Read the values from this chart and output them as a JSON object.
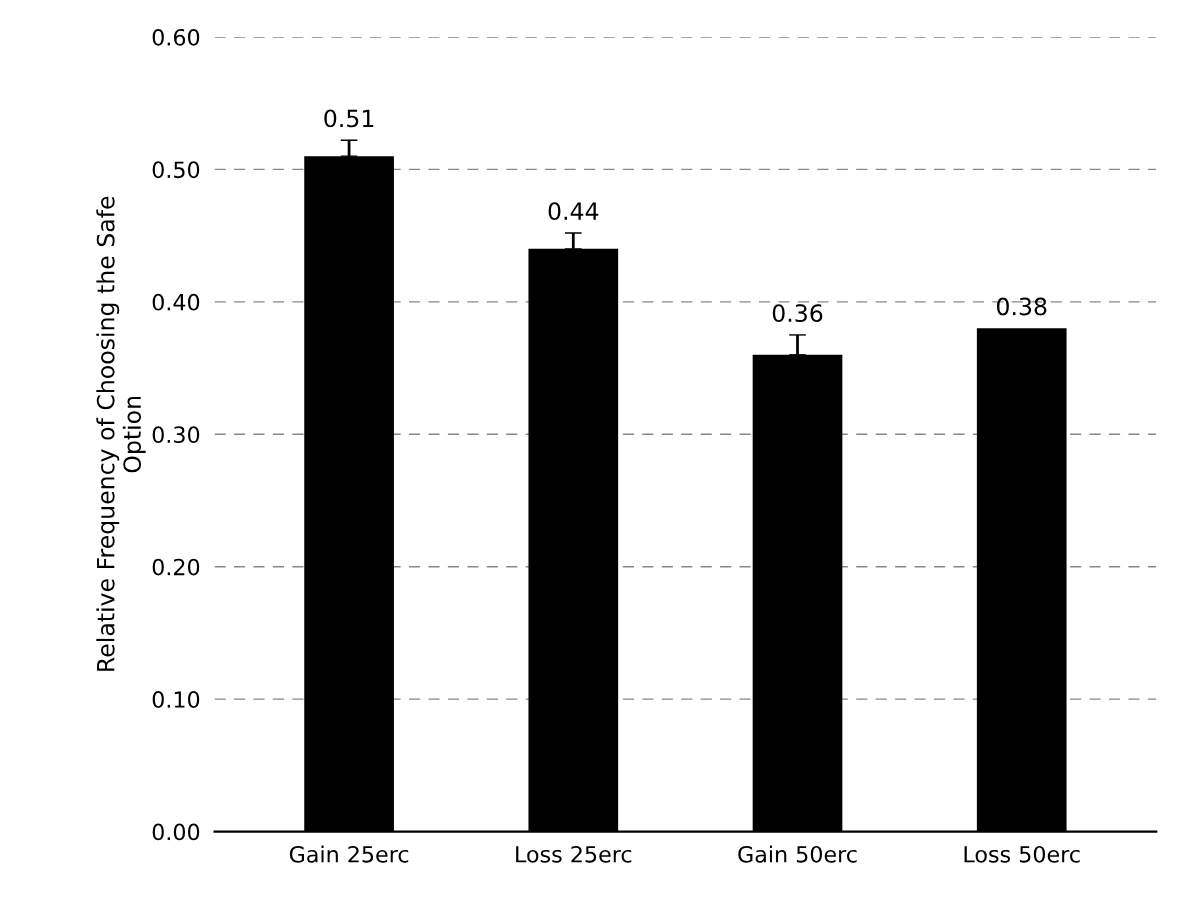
{
  "chart_data": {
    "type": "bar",
    "ylabel": "Relative Frequency of Choosing the Safe\nOption",
    "categories": [
      "Gain 25erc",
      "Loss 25erc",
      "Gain 50erc",
      "Loss 50erc"
    ],
    "values": [
      0.51,
      0.44,
      0.36,
      0.38
    ],
    "errors": [
      0.012,
      0.012,
      0.015,
      null
    ],
    "color": "#000000",
    "data_labels": true,
    "ylim": [
      0,
      0.6
    ],
    "yticks": [
      {
        "value": 0,
        "label": "0.00"
      },
      {
        "value": 0.1,
        "label": "0.10"
      },
      {
        "value": 0.2,
        "label": "0.20"
      },
      {
        "value": 0.3,
        "label": "0.30"
      },
      {
        "value": 0.4,
        "label": "0.40"
      },
      {
        "value": 0.5,
        "label": "0.50"
      },
      {
        "value": 0.6,
        "label": "0.60"
      }
    ],
    "grid": "y"
  }
}
